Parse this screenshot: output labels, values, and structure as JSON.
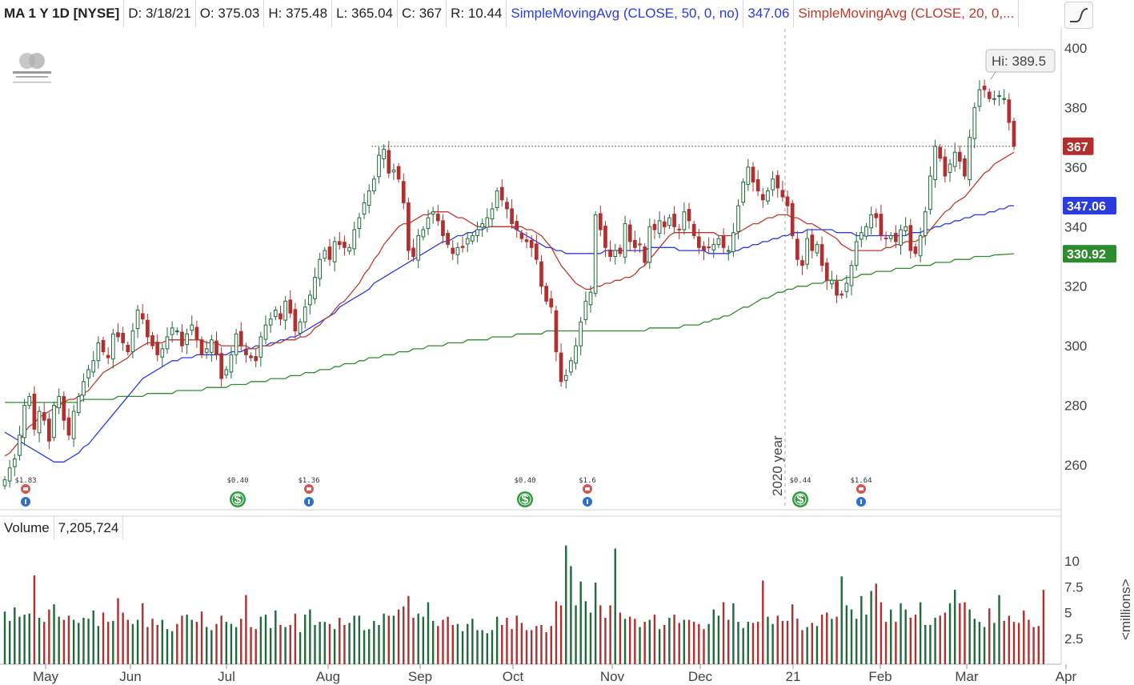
{
  "header": {
    "symbol": "MA 1 Y 1D [NYSE]",
    "date": "D: 3/18/21",
    "open": "O: 375.03",
    "high": "H: 375.48",
    "low": "L: 365.04",
    "close": "C: 367",
    "range": "R: 10.44",
    "sma50_label": "SimpleMovingAvg (CLOSE, 50, 0, no)",
    "sma50_value": "347.06",
    "sma20_label": "SimpleMovingAvg (CLOSE, 20, 0,..."
  },
  "logo_text": "MasterCard Worldwide",
  "volume_header": {
    "label": "Volume",
    "value": "7,205,724"
  },
  "colors": {
    "up": "#1f6b3a",
    "down": "#b03030",
    "sma20": "#c0392b",
    "sma50": "#2a3be0",
    "sma200": "#2e8b2e",
    "price_badge": "#b03030",
    "sma50_badge": "#2a3be0",
    "sma200_badge": "#2e8b2e",
    "volume_up": "#1f6b3a",
    "volume_down": "#b03030"
  },
  "badges": {
    "price": "367",
    "sma50": "347.06",
    "sma200": "330.92",
    "hi": "Hi: 389.5"
  },
  "year_marker": "2020 year",
  "events": [
    {
      "label": "$1.83",
      "icons": [
        "earnings-icon",
        "info-icon"
      ],
      "month": "May"
    },
    {
      "label": "$0.40",
      "icons": [
        "dividend-icon"
      ],
      "month": "Jul"
    },
    {
      "label": "$1.36",
      "icons": [
        "earnings-icon",
        "info-icon"
      ],
      "month": "Jul"
    },
    {
      "label": "$0.40",
      "icons": [
        "dividend-icon"
      ],
      "month": "Oct"
    },
    {
      "label": "$1.6",
      "icons": [
        "earnings-icon",
        "info-icon"
      ],
      "month": "Oct"
    },
    {
      "label": "$0.44",
      "icons": [
        "dividend-icon"
      ],
      "month": "Jan"
    },
    {
      "label": "$1.64",
      "icons": [
        "earnings-icon",
        "info-icon"
      ],
      "month": "Jan"
    }
  ],
  "chart_data": [
    {
      "type": "candlestick",
      "title": "MA 1 Y 1D [NYSE]",
      "ylim": [
        248,
        410
      ],
      "y_ticks": [
        260,
        280,
        300,
        320,
        340,
        360,
        380,
        400
      ],
      "months": [
        "May",
        "Jun",
        "Jul",
        "Aug",
        "Sep",
        "Oct",
        "Nov",
        "Dec",
        "21",
        "Feb",
        "Mar",
        "Apr"
      ],
      "resistance_line": 367,
      "hi": 389.5,
      "last_close": 367,
      "closes": [
        255,
        259,
        262,
        270,
        280,
        283,
        272,
        278,
        275,
        268,
        280,
        283,
        275,
        270,
        278,
        283,
        288,
        292,
        295,
        301,
        298,
        296,
        304,
        303,
        301,
        298,
        305,
        312,
        309,
        303,
        300,
        297,
        299,
        303,
        306,
        305,
        300,
        304,
        307,
        302,
        297,
        299,
        302,
        297,
        289,
        292,
        297,
        304,
        300,
        297,
        296,
        295,
        303,
        307,
        309,
        312,
        309,
        315,
        311,
        305,
        308,
        313,
        317,
        323,
        329,
        332,
        329,
        335,
        334,
        333,
        333,
        339,
        343,
        348,
        352,
        356,
        364,
        366,
        358,
        359,
        356,
        348,
        332,
        330,
        337,
        339,
        343,
        345,
        342,
        337,
        334,
        331,
        333,
        333,
        336,
        337,
        339,
        341,
        343,
        346,
        352,
        349,
        346,
        341,
        339,
        336,
        335,
        333,
        329,
        320,
        315,
        313,
        298,
        288,
        290,
        295,
        300,
        308,
        315,
        318,
        344,
        339,
        333,
        330,
        332,
        331,
        341,
        335,
        333,
        334,
        328,
        340,
        339,
        342,
        340,
        343,
        340,
        339,
        345,
        342,
        337,
        333,
        332,
        333,
        334,
        336,
        333,
        332,
        338,
        347,
        355,
        360,
        355,
        352,
        349,
        352,
        356,
        353,
        350,
        347,
        337,
        329,
        327,
        336,
        332,
        334,
        327,
        322,
        322,
        317,
        317,
        321,
        327,
        335,
        338,
        340,
        344,
        343,
        337,
        336,
        337,
        335,
        339,
        340,
        332,
        331,
        337,
        345,
        357,
        367,
        363,
        357,
        361,
        365,
        362,
        357,
        370,
        380,
        386,
        386,
        383,
        383,
        384,
        383,
        375,
        367
      ],
      "sma20": [
        263,
        264,
        266,
        268,
        271,
        273,
        274,
        276,
        277,
        278,
        279,
        280,
        281,
        282,
        282,
        283,
        284,
        285,
        287,
        289,
        291,
        292,
        293,
        294,
        295,
        296,
        298,
        299,
        300,
        301,
        301,
        301,
        301,
        302,
        302,
        302,
        302,
        302,
        302,
        302,
        302,
        301,
        301,
        301,
        300,
        300,
        300,
        300,
        300,
        300,
        299,
        299,
        300,
        300,
        300,
        301,
        301,
        302,
        302,
        302,
        303,
        303,
        304,
        306,
        307,
        309,
        310,
        312,
        314,
        315,
        317,
        319,
        321,
        324,
        326,
        329,
        331,
        334,
        336,
        338,
        340,
        341,
        341,
        342,
        343,
        344,
        344,
        345,
        345,
        345,
        345,
        344,
        343,
        343,
        342,
        341,
        340,
        340,
        340,
        340,
        340,
        340,
        340,
        340,
        340,
        340,
        339,
        339,
        338,
        337,
        335,
        333,
        330,
        327,
        325,
        323,
        321,
        320,
        319,
        319,
        320,
        320,
        321,
        321,
        322,
        322,
        323,
        323,
        324,
        326,
        327,
        329,
        331,
        333,
        335,
        337,
        338,
        338,
        338,
        338,
        338,
        338,
        338,
        338,
        338,
        337,
        337,
        337,
        337,
        338,
        339,
        340,
        341,
        341,
        342,
        343,
        343,
        344,
        344,
        344,
        343,
        343,
        342,
        341,
        341,
        340,
        339,
        338,
        337,
        336,
        334,
        333,
        332,
        332,
        332,
        332,
        332,
        332,
        332,
        333,
        333,
        334,
        334,
        335,
        335,
        335,
        336,
        337,
        339,
        341,
        343,
        345,
        346,
        348,
        349,
        350,
        352,
        354,
        356,
        358,
        359,
        361,
        362,
        363,
        364,
        365
      ],
      "sma50": [
        271,
        270,
        269,
        268,
        267,
        266,
        265,
        264,
        263,
        262,
        261,
        261,
        261,
        262,
        263,
        264,
        266,
        267,
        269,
        271,
        273,
        275,
        277,
        279,
        281,
        283,
        285,
        287,
        289,
        290,
        291,
        292,
        293,
        294,
        295,
        295,
        296,
        296,
        296,
        297,
        297,
        297,
        297,
        297,
        297,
        297,
        298,
        298,
        298,
        299,
        299,
        300,
        300,
        300,
        301,
        301,
        302,
        302,
        303,
        303,
        304,
        305,
        306,
        307,
        308,
        309,
        310,
        311,
        313,
        314,
        315,
        316,
        317,
        318,
        319,
        321,
        322,
        323,
        324,
        325,
        326,
        327,
        328,
        329,
        330,
        331,
        332,
        333,
        334,
        335,
        335,
        336,
        337,
        337,
        338,
        338,
        339,
        339,
        340,
        340,
        340,
        340,
        340,
        340,
        339,
        338,
        337,
        336,
        335,
        334,
        333,
        333,
        332,
        332,
        331,
        331,
        331,
        331,
        331,
        331,
        331,
        331,
        332,
        332,
        332,
        332,
        332,
        332,
        332,
        332,
        332,
        333,
        333,
        333,
        333,
        333,
        333,
        332,
        332,
        332,
        332,
        332,
        332,
        331,
        331,
        331,
        331,
        331,
        332,
        332,
        333,
        333,
        334,
        334,
        335,
        335,
        336,
        336,
        337,
        337,
        338,
        338,
        338,
        339,
        339,
        339,
        339,
        339,
        339,
        338,
        338,
        338,
        338,
        337,
        337,
        337,
        337,
        337,
        337,
        337,
        337,
        337,
        337,
        337,
        338,
        338,
        338,
        339,
        339,
        340,
        340,
        341,
        341,
        342,
        342,
        343,
        343,
        344,
        344,
        344,
        345,
        345,
        346,
        346,
        347,
        347.06
      ],
      "sma200": [
        281,
        281,
        281,
        281,
        281,
        281,
        281,
        281,
        281,
        281,
        281,
        281,
        281,
        281,
        281,
        281,
        282,
        282,
        282,
        282,
        282,
        282,
        282,
        283,
        283,
        283,
        283,
        283,
        283,
        284,
        284,
        284,
        284,
        284,
        284,
        285,
        285,
        285,
        285,
        285,
        285,
        286,
        286,
        286,
        286,
        286,
        287,
        287,
        287,
        287,
        288,
        288,
        288,
        288,
        289,
        289,
        289,
        289,
        290,
        290,
        290,
        291,
        291,
        291,
        292,
        292,
        292,
        293,
        293,
        294,
        294,
        294,
        295,
        295,
        296,
        296,
        296,
        297,
        297,
        297,
        298,
        298,
        298,
        299,
        299,
        299,
        300,
        300,
        300,
        300,
        301,
        301,
        301,
        301,
        302,
        302,
        302,
        302,
        302,
        303,
        303,
        303,
        303,
        303,
        304,
        304,
        304,
        304,
        304,
        304,
        305,
        305,
        305,
        305,
        305,
        305,
        305,
        305,
        305,
        305,
        305,
        305,
        305,
        305,
        305,
        305,
        305,
        305,
        305,
        305,
        305,
        306,
        306,
        306,
        306,
        306,
        306,
        306,
        307,
        307,
        307,
        307,
        308,
        308,
        309,
        309,
        310,
        310,
        311,
        312,
        313,
        313,
        314,
        315,
        316,
        316,
        317,
        318,
        318,
        319,
        319,
        320,
        320,
        320,
        321,
        321,
        321,
        322,
        322,
        322,
        322,
        323,
        323,
        323,
        324,
        324,
        324,
        325,
        325,
        325,
        325,
        326,
        326,
        326,
        326,
        327,
        327,
        327,
        327,
        328,
        328,
        328,
        328,
        329,
        329,
        329,
        329,
        330,
        330,
        330,
        330,
        330.5,
        330.6,
        330.7,
        330.8,
        330.92
      ]
    },
    {
      "type": "bar",
      "title": "Volume",
      "ylabel": "<millions>",
      "ylim": [
        0,
        12
      ],
      "y_ticks": [
        2.5,
        5,
        7.5,
        10
      ],
      "values": [
        5.1,
        4.2,
        5.5,
        4.6,
        4.8,
        4.9,
        8.6,
        4.5,
        4.1,
        5.3,
        5.8,
        4.6,
        4.3,
        4.7,
        4.3,
        4.0,
        4.5,
        4.4,
        5.2,
        3.7,
        5.0,
        4.1,
        4.2,
        6.4,
        5.0,
        4.3,
        3.9,
        4.3,
        5.9,
        3.6,
        4.4,
        3.8,
        4.3,
        3.4,
        3.2,
        3.9,
        4.7,
        4.8,
        4.3,
        4.1,
        5.1,
        3.6,
        3.3,
        3.9,
        4.7,
        4.1,
        3.9,
        3.6,
        4.4,
        6.7,
        3.6,
        3.4,
        4.6,
        4.8,
        3.5,
        5.2,
        3.8,
        3.6,
        3.8,
        4.9,
        3.1,
        4.8,
        5.3,
        3.8,
        4.1,
        4.1,
        3.9,
        3.4,
        4.5,
        3.8,
        4.0,
        4.7,
        4.7,
        3.3,
        3.4,
        4.2,
        3.8,
        4.9,
        4.7,
        4.7,
        5.3,
        5.6,
        6.6,
        4.5,
        4.9,
        4.6,
        6.0,
        4.2,
        3.7,
        4.3,
        4.6,
        3.8,
        3.9,
        3.2,
        3.9,
        4.4,
        3.3,
        3.3,
        3.0,
        3.3,
        4.6,
        3.8,
        4.5,
        3.4,
        4.7,
        4.0,
        3.3,
        3.3,
        3.7,
        3.8,
        3.1,
        3.7,
        6.1,
        5.7,
        11.5,
        9.5,
        5.7,
        8.0,
        6.1,
        5.0,
        7.9,
        5.7,
        4.5,
        5.7,
        11.2,
        5.0,
        4.4,
        4.6,
        4.4,
        3.6,
        4.1,
        4.3,
        4.8,
        3.4,
        3.8,
        4.5,
        4.8,
        4.0,
        4.3,
        4.3,
        4.1,
        3.9,
        3.4,
        3.9,
        5.3,
        4.7,
        6.0,
        4.3,
        5.9,
        4.1,
        3.5,
        4.1,
        4.0,
        4.1,
        8.1,
        4.6,
        3.9,
        4.7,
        4.2,
        4.2,
        5.8,
        4.4,
        3.3,
        3.6,
        4.0,
        3.7,
        4.8,
        5.0,
        4.4,
        4.6,
        8.5,
        5.7,
        5.3,
        4.4,
        6.6,
        4.8,
        7.1,
        7.8,
        6.0,
        4.1,
        5.3,
        4.1,
        5.9,
        5.3,
        4.5,
        4.8,
        6.0,
        3.8,
        3.8,
        4.5,
        4.7,
        5.0,
        5.9,
        7.2,
        5.9,
        6.0,
        5.3,
        4.4,
        4.1,
        3.6,
        5.4,
        4.0,
        6.7,
        4.2,
        4.7,
        4.1,
        4.0,
        5.2,
        4.3,
        3.6,
        3.7,
        7.2
      ]
    }
  ]
}
